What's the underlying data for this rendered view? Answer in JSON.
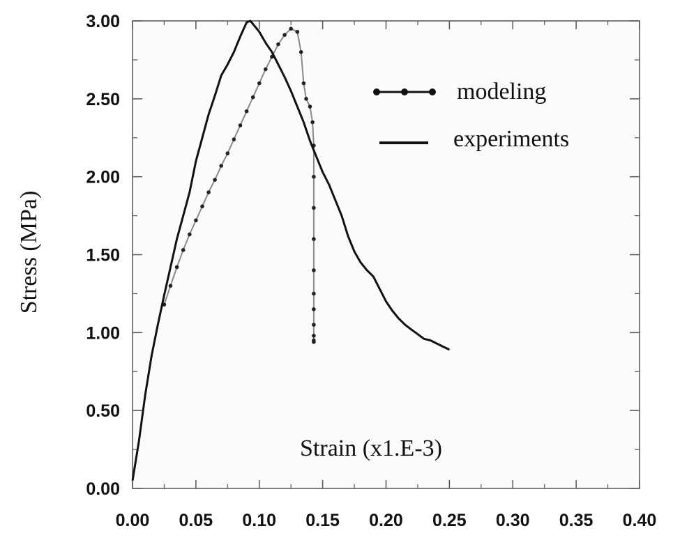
{
  "chart_data": {
    "type": "line",
    "xlabel": "Strain (x1.E-3)",
    "ylabel": "Stress (MPa)",
    "xlim": [
      0,
      0.4
    ],
    "ylim": [
      0,
      3
    ],
    "x_ticks": [
      "0.00",
      "0.05",
      "0.10",
      "0.15",
      "0.20",
      "0.25",
      "0.30",
      "0.35",
      "0.40"
    ],
    "y_ticks": [
      "0.00",
      "0.50",
      "1.00",
      "1.50",
      "2.00",
      "2.50",
      "3.00"
    ],
    "grid": false,
    "legend_position": "top-right",
    "series": [
      {
        "name": "modeling",
        "style": "line-with-markers",
        "color": "#222222",
        "x": [
          0.025,
          0.03,
          0.035,
          0.04,
          0.045,
          0.05,
          0.055,
          0.06,
          0.065,
          0.07,
          0.075,
          0.08,
          0.085,
          0.09,
          0.095,
          0.1,
          0.105,
          0.11,
          0.115,
          0.12,
          0.125,
          0.13,
          0.133,
          0.135,
          0.137,
          0.14,
          0.142,
          0.143,
          0.143,
          0.143,
          0.143,
          0.143,
          0.143,
          0.143,
          0.143,
          0.143,
          0.143,
          0.143
        ],
        "y": [
          1.18,
          1.3,
          1.42,
          1.53,
          1.63,
          1.72,
          1.81,
          1.9,
          1.98,
          2.07,
          2.15,
          2.24,
          2.33,
          2.42,
          2.51,
          2.6,
          2.69,
          2.77,
          2.85,
          2.91,
          2.95,
          2.93,
          2.8,
          2.6,
          2.5,
          2.45,
          2.35,
          2.2,
          2.0,
          1.8,
          1.6,
          1.4,
          1.25,
          1.15,
          1.05,
          0.98,
          0.95,
          0.94
        ]
      },
      {
        "name": "experiments",
        "style": "line",
        "color": "#111111",
        "x": [
          0.0,
          0.005,
          0.01,
          0.015,
          0.02,
          0.025,
          0.03,
          0.035,
          0.04,
          0.045,
          0.05,
          0.055,
          0.06,
          0.065,
          0.07,
          0.075,
          0.08,
          0.085,
          0.09,
          0.093,
          0.095,
          0.1,
          0.105,
          0.11,
          0.115,
          0.12,
          0.125,
          0.13,
          0.135,
          0.14,
          0.145,
          0.15,
          0.155,
          0.16,
          0.165,
          0.17,
          0.175,
          0.18,
          0.185,
          0.19,
          0.195,
          0.2,
          0.205,
          0.21,
          0.215,
          0.22,
          0.225,
          0.23,
          0.235,
          0.24,
          0.245,
          0.25
        ],
        "y": [
          0.05,
          0.3,
          0.6,
          0.85,
          1.05,
          1.24,
          1.42,
          1.6,
          1.75,
          1.9,
          2.1,
          2.25,
          2.4,
          2.52,
          2.65,
          2.72,
          2.8,
          2.9,
          2.99,
          3.0,
          2.98,
          2.93,
          2.86,
          2.8,
          2.72,
          2.64,
          2.55,
          2.45,
          2.35,
          2.23,
          2.13,
          2.03,
          1.95,
          1.85,
          1.75,
          1.62,
          1.52,
          1.45,
          1.4,
          1.36,
          1.28,
          1.2,
          1.14,
          1.09,
          1.05,
          1.02,
          0.99,
          0.96,
          0.95,
          0.93,
          0.91,
          0.89
        ]
      }
    ]
  }
}
